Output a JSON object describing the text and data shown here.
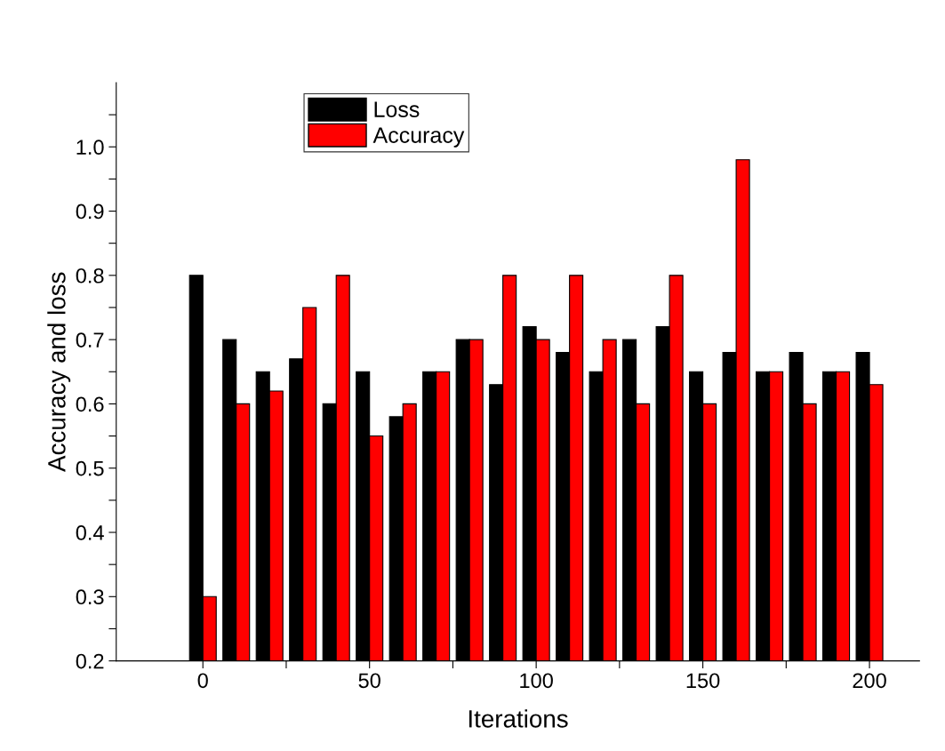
{
  "chart_data": {
    "type": "bar",
    "xlabel": "Iterations",
    "ylabel": "Accuracy and loss",
    "x": [
      0,
      10,
      20,
      30,
      40,
      50,
      60,
      70,
      80,
      90,
      100,
      110,
      120,
      130,
      140,
      150,
      160,
      170,
      180,
      190,
      200
    ],
    "series": [
      {
        "name": "Loss",
        "color": "#000000",
        "values": [
          0.8,
          0.7,
          0.65,
          0.67,
          0.6,
          0.65,
          0.58,
          0.65,
          0.7,
          0.63,
          0.72,
          0.68,
          0.65,
          0.7,
          0.72,
          0.65,
          0.68,
          0.65,
          0.68,
          0.65,
          0.68
        ]
      },
      {
        "name": "Accuracy",
        "color": "#ff0000",
        "values": [
          0.3,
          0.6,
          0.62,
          0.75,
          0.8,
          0.55,
          0.6,
          0.65,
          0.7,
          0.8,
          0.7,
          0.8,
          0.7,
          0.6,
          0.8,
          0.6,
          0.98,
          0.65,
          0.6,
          0.65,
          0.63
        ]
      }
    ],
    "xlim": [
      -26,
      215
    ],
    "xticks": [
      0,
      {
        "value": 25,
        "label": null
      },
      50,
      {
        "value": 75,
        "label": null
      },
      100,
      {
        "value": 125,
        "label": null
      },
      150,
      {
        "value": 175,
        "label": null
      },
      200
    ],
    "ylim": [
      0.2,
      1.1
    ],
    "yticks": [
      0.2,
      {
        "value": 0.25,
        "label": null
      },
      0.3,
      {
        "value": 0.35,
        "label": null
      },
      0.4,
      {
        "value": 0.45,
        "label": null
      },
      0.5,
      {
        "value": 0.55,
        "label": null
      },
      0.6,
      {
        "value": 0.65,
        "label": null
      },
      0.7,
      {
        "value": 0.75,
        "label": null
      },
      0.8,
      {
        "value": 0.85,
        "label": null
      },
      0.9,
      {
        "value": 0.95,
        "label": null
      },
      {
        "value": 1.0,
        "label": "1.0"
      },
      {
        "value": 1.05,
        "label": null
      }
    ],
    "legend": "top left",
    "grid": false
  }
}
